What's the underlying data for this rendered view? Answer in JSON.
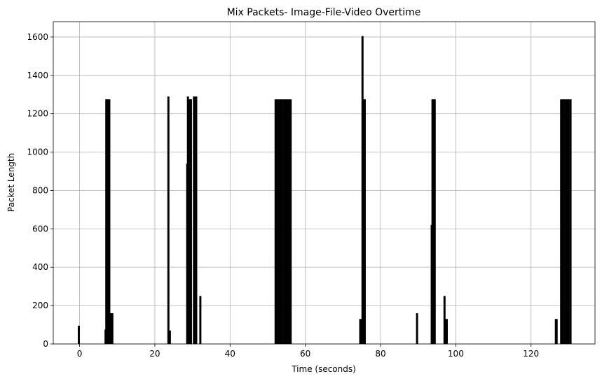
{
  "chart_data": {
    "type": "bar",
    "title": "Mix Packets- Image-File-Video Overtime",
    "xlabel": "Time (seconds)",
    "ylabel": "Packet Length",
    "xlim": [
      -7,
      137
    ],
    "ylim": [
      0,
      1680
    ],
    "xticks": [
      0,
      20,
      40,
      60,
      80,
      100,
      120
    ],
    "yticks": [
      0,
      200,
      400,
      600,
      800,
      1000,
      1200,
      1400,
      1600
    ],
    "grid": true,
    "bar_color": "#000000",
    "bar_width": 0.35,
    "x": [
      -0.3,
      -0.1,
      6.8,
      7.0,
      7.2,
      7.4,
      7.6,
      7.8,
      8.0,
      8.2,
      8.4,
      8.6,
      8.8,
      23.5,
      23.7,
      23.9,
      24.1,
      28.5,
      28.7,
      28.9,
      29.1,
      29.3,
      29.5,
      29.7,
      30.3,
      30.5,
      30.7,
      30.9,
      31.1,
      32.0,
      32.2,
      52.0,
      52.3,
      52.6,
      52.9,
      53.2,
      53.5,
      53.8,
      54.1,
      54.4,
      54.7,
      55.0,
      55.3,
      55.6,
      55.9,
      56.2,
      74.5,
      74.7,
      74.9,
      75.1,
      75.3,
      75.5,
      75.7,
      75.9,
      89.6,
      89.8,
      93.5,
      93.7,
      93.9,
      94.1,
      94.3,
      94.5,
      96.9,
      97.1,
      97.3,
      97.5,
      97.7,
      126.5,
      126.7,
      126.9,
      127.9,
      128.2,
      128.5,
      128.8,
      129.1,
      129.4,
      129.7,
      130.0,
      130.3,
      130.6
    ],
    "values": [
      95,
      95,
      75,
      1275,
      1275,
      1275,
      1275,
      1275,
      1275,
      160,
      160,
      160,
      160,
      1290,
      1290,
      70,
      70,
      940,
      1290,
      1290,
      1275,
      1275,
      1275,
      1275,
      1290,
      1290,
      1290,
      1290,
      1290,
      250,
      250,
      1275,
      1275,
      1275,
      1275,
      1275,
      1275,
      1275,
      1275,
      1275,
      1275,
      1275,
      1275,
      1275,
      1275,
      1275,
      130,
      130,
      130,
      1605,
      1605,
      1275,
      1275,
      1275,
      160,
      160,
      620,
      1275,
      1275,
      1275,
      1275,
      1275,
      250,
      250,
      130,
      130,
      130,
      130,
      130,
      130,
      1275,
      1275,
      1275,
      1275,
      1275,
      1275,
      1275,
      1275,
      1275,
      1275
    ]
  }
}
